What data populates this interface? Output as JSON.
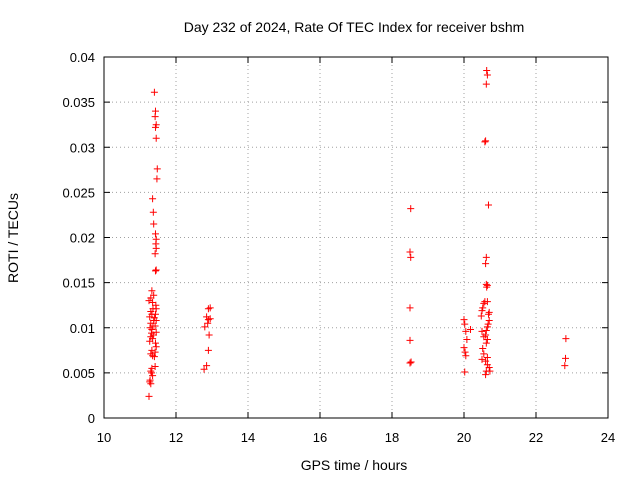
{
  "chart_data": {
    "type": "scatter",
    "title": "Day 232 of 2024, Rate Of TEC Index for receiver bshm",
    "xlabel": "GPS time / hours",
    "ylabel": "ROTI / TECUs",
    "xlim": [
      10,
      24
    ],
    "ylim": [
      0,
      0.04
    ],
    "xticks": [
      10,
      12,
      14,
      16,
      18,
      20,
      22,
      24
    ],
    "xtick_labels": [
      "10",
      "12",
      "14",
      "16",
      "18",
      "20",
      "22",
      "24"
    ],
    "yticks": [
      0,
      0.005,
      0.01,
      0.015,
      0.02,
      0.025,
      0.03,
      0.035,
      0.04
    ],
    "ytick_labels": [
      "0",
      "0.005",
      "0.01",
      "0.015",
      "0.02",
      "0.025",
      "0.03",
      "0.035",
      "0.04"
    ],
    "grid": true,
    "marker": "+",
    "color": "#ff0000",
    "series": [
      {
        "name": "bshm",
        "points": [
          [
            11.25,
            0.0024
          ],
          [
            11.27,
            0.004
          ],
          [
            11.28,
            0.0042
          ],
          [
            11.3,
            0.0038
          ],
          [
            11.3,
            0.0052
          ],
          [
            11.32,
            0.005
          ],
          [
            11.33,
            0.0055
          ],
          [
            11.3,
            0.0071
          ],
          [
            11.33,
            0.0075
          ],
          [
            11.35,
            0.0069
          ],
          [
            11.27,
            0.0085
          ],
          [
            11.3,
            0.009
          ],
          [
            11.32,
            0.0094
          ],
          [
            11.35,
            0.0088
          ],
          [
            11.37,
            0.0092
          ],
          [
            11.28,
            0.01
          ],
          [
            11.3,
            0.0105
          ],
          [
            11.33,
            0.0098
          ],
          [
            11.36,
            0.0102
          ],
          [
            11.38,
            0.0108
          ],
          [
            11.27,
            0.0112
          ],
          [
            11.3,
            0.0118
          ],
          [
            11.33,
            0.0115
          ],
          [
            11.36,
            0.0121
          ],
          [
            11.4,
            0.0111
          ],
          [
            11.25,
            0.013
          ],
          [
            11.3,
            0.0133
          ],
          [
            11.35,
            0.0128
          ],
          [
            11.38,
            0.0136
          ],
          [
            11.33,
            0.0141
          ],
          [
            11.4,
            0.0068
          ],
          [
            11.42,
            0.0073
          ],
          [
            11.45,
            0.0079
          ],
          [
            11.43,
            0.0083
          ],
          [
            11.45,
            0.0095
          ],
          [
            11.42,
            0.0102
          ],
          [
            11.45,
            0.0108
          ],
          [
            11.43,
            0.0115
          ],
          [
            11.45,
            0.0121
          ],
          [
            11.44,
            0.0125
          ],
          [
            11.43,
            0.0163
          ],
          [
            11.45,
            0.0164
          ],
          [
            11.42,
            0.0182
          ],
          [
            11.45,
            0.0188
          ],
          [
            11.44,
            0.0193
          ],
          [
            11.45,
            0.0198
          ],
          [
            11.43,
            0.0204
          ],
          [
            11.38,
            0.0215
          ],
          [
            11.37,
            0.0228
          ],
          [
            11.35,
            0.0243
          ],
          [
            11.47,
            0.0265
          ],
          [
            11.48,
            0.0276
          ],
          [
            11.45,
            0.031
          ],
          [
            11.43,
            0.0322
          ],
          [
            11.45,
            0.0325
          ],
          [
            11.42,
            0.0334
          ],
          [
            11.43,
            0.034
          ],
          [
            11.4,
            0.0361
          ],
          [
            11.42,
            0.0057
          ],
          [
            11.35,
            0.0047
          ],
          [
            12.78,
            0.0054
          ],
          [
            12.85,
            0.0058
          ],
          [
            12.9,
            0.0075
          ],
          [
            12.92,
            0.0092
          ],
          [
            12.8,
            0.0101
          ],
          [
            12.88,
            0.0105
          ],
          [
            12.9,
            0.0109
          ],
          [
            12.85,
            0.0112
          ],
          [
            12.95,
            0.011
          ],
          [
            12.9,
            0.0121
          ],
          [
            12.95,
            0.0122
          ],
          [
            18.5,
            0.0061
          ],
          [
            18.53,
            0.0062
          ],
          [
            18.5,
            0.0086
          ],
          [
            18.5,
            0.0122
          ],
          [
            18.52,
            0.0178
          ],
          [
            18.5,
            0.0184
          ],
          [
            18.52,
            0.0232
          ],
          [
            20.02,
            0.0051
          ],
          [
            20.05,
            0.0069
          ],
          [
            20.03,
            0.0073
          ],
          [
            20.0,
            0.0078
          ],
          [
            20.08,
            0.0087
          ],
          [
            20.05,
            0.0096
          ],
          [
            20.02,
            0.0104
          ],
          [
            20.0,
            0.0109
          ],
          [
            20.18,
            0.0098
          ],
          [
            20.5,
            0.0065
          ],
          [
            20.55,
            0.0071
          ],
          [
            20.52,
            0.0077
          ],
          [
            20.55,
            0.009
          ],
          [
            20.5,
            0.0096
          ],
          [
            20.48,
            0.0113
          ],
          [
            20.5,
            0.0119
          ],
          [
            20.52,
            0.0122
          ],
          [
            20.55,
            0.0127
          ],
          [
            20.58,
            0.0129
          ],
          [
            20.6,
            0.0048
          ],
          [
            20.62,
            0.0052
          ],
          [
            20.65,
            0.0059
          ],
          [
            20.6,
            0.0063
          ],
          [
            20.65,
            0.0067
          ],
          [
            20.62,
            0.0083
          ],
          [
            20.65,
            0.0087
          ],
          [
            20.6,
            0.0092
          ],
          [
            20.62,
            0.0097
          ],
          [
            20.65,
            0.0101
          ],
          [
            20.67,
            0.0104
          ],
          [
            20.7,
            0.0108
          ],
          [
            20.68,
            0.0115
          ],
          [
            20.65,
            0.0129
          ],
          [
            20.63,
            0.0145
          ],
          [
            20.62,
            0.0148
          ],
          [
            20.65,
            0.0147
          ],
          [
            20.6,
            0.0171
          ],
          [
            20.62,
            0.0178
          ],
          [
            20.58,
            0.0306
          ],
          [
            20.6,
            0.0307
          ],
          [
            20.62,
            0.037
          ],
          [
            20.65,
            0.038
          ],
          [
            20.63,
            0.0385
          ],
          [
            20.68,
            0.0236
          ],
          [
            20.7,
            0.0117
          ],
          [
            20.72,
            0.0052
          ],
          [
            20.7,
            0.0056
          ],
          [
            22.8,
            0.0058
          ],
          [
            22.82,
            0.0066
          ],
          [
            22.83,
            0.0088
          ]
        ]
      }
    ]
  }
}
